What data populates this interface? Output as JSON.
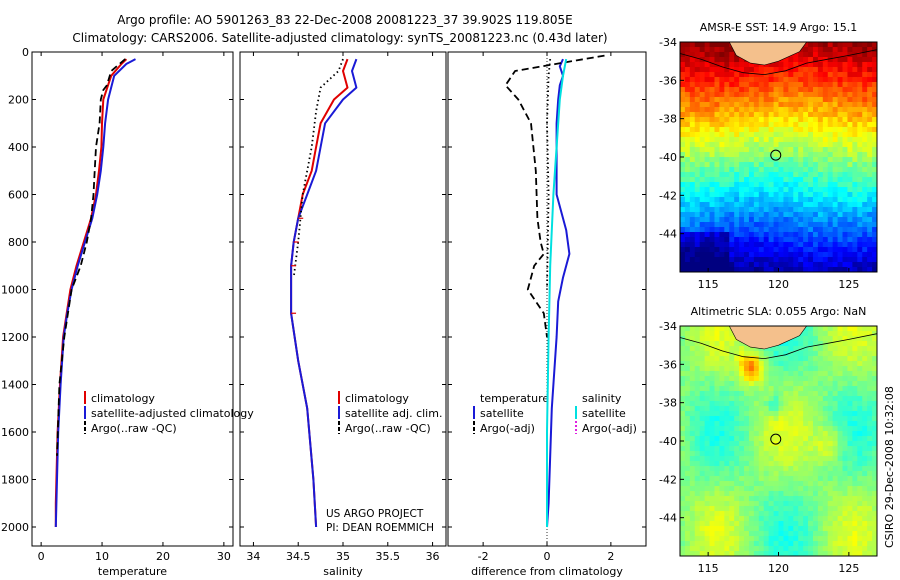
{
  "figure": {
    "title_line1": "Argo profile: AO 5901263_83 22-Dec-2008 20081223_37 39.902S 119.805E",
    "title_line2": "Climatology: CARS2006. Satellite-adjusted climatology: synTS_20081223.nc (0.43d later)",
    "credit": "CSIRO 29-Dec-2008 10:32:08",
    "project_line1": "US ARGO PROJECT",
    "project_line2": "PI: DEAN ROEMMICH"
  },
  "colors": {
    "climatology": "#e00000",
    "satellite": "#1a1ad6",
    "argo": "#000000",
    "satellite_salinity_diff": "#00e0e0",
    "argo_salinity_diff": "#e020e0",
    "land": "#f4c08c"
  },
  "legends": {
    "temperature": [
      "climatology",
      "satellite-adjusted climatology",
      "Argo(..raw -QC)"
    ],
    "salinity": [
      "climatology",
      "satellite adj. clim.",
      "Argo(..raw -QC)"
    ],
    "difference": {
      "temperature_header": "temperature",
      "salinity_header": "salinity",
      "temperature_items": [
        "satellite",
        "Argo(-adj)"
      ],
      "salinity_items": [
        "satellite",
        "Argo(-adj)"
      ]
    }
  },
  "chart_data": [
    {
      "type": "line",
      "xlabel": "temperature",
      "ylabel": "",
      "xlim": [
        -1.5,
        31.5
      ],
      "ylim": [
        2080,
        0
      ],
      "xticks": [
        0,
        10,
        20,
        30
      ],
      "yticks": [
        0,
        200,
        400,
        600,
        800,
        1000,
        1200,
        1400,
        1600,
        1800,
        2000
      ],
      "y_reversed": true,
      "series": [
        {
          "name": "climatology",
          "style": "solid",
          "x": [
            14.0,
            13.2,
            11.5,
            10.2,
            10.0,
            9.9,
            9.5,
            9.0,
            8.2,
            7.0,
            5.8,
            4.8,
            4.2,
            3.6,
            3.1,
            2.7,
            2.5,
            2.4,
            2.4
          ],
          "y": [
            30,
            50,
            100,
            200,
            300,
            400,
            500,
            600,
            700,
            800,
            900,
            1000,
            1100,
            1200,
            1400,
            1600,
            1800,
            1900,
            2000
          ]
        },
        {
          "name": "satellite-adjusted climatology",
          "style": "solid",
          "x": [
            15.5,
            14.0,
            12.0,
            11.0,
            10.5,
            10.2,
            9.8,
            9.2,
            8.4,
            7.2,
            6.0,
            5.0,
            4.3,
            3.7,
            3.2,
            2.8,
            2.6,
            2.5,
            2.4
          ],
          "y": [
            30,
            50,
            100,
            200,
            300,
            400,
            500,
            600,
            700,
            800,
            900,
            1000,
            1100,
            1200,
            1400,
            1600,
            1800,
            1900,
            2000
          ]
        },
        {
          "name": "Argo(..raw -QC)",
          "style": "dashed",
          "x": [
            13.8,
            11.5,
            10.8,
            10.2,
            9.8,
            9.6,
            9.0,
            8.8,
            8.6,
            8.2,
            7.5,
            6.5,
            5.0,
            3.8,
            3.0,
            2.6
          ],
          "y": [
            30,
            80,
            140,
            160,
            200,
            300,
            400,
            500,
            600,
            700,
            800,
            900,
            1000,
            1200,
            1400,
            1700
          ]
        }
      ]
    },
    {
      "type": "line",
      "xlabel": "salinity",
      "ylabel": "",
      "xlim": [
        33.85,
        36.15
      ],
      "ylim": [
        2080,
        0
      ],
      "xticks": [
        34,
        34.5,
        35,
        35.5,
        36
      ],
      "y_reversed": true,
      "series": [
        {
          "name": "climatology",
          "style": "solid",
          "x": [
            35.05,
            35.0,
            35.05,
            34.9,
            34.75,
            34.7,
            34.65,
            34.55,
            34.5,
            34.45,
            34.42,
            34.42,
            34.5,
            34.6,
            34.67,
            34.7
          ],
          "y": [
            30,
            80,
            150,
            200,
            300,
            400,
            500,
            600,
            700,
            800,
            900,
            1100,
            1300,
            1500,
            1800,
            2000
          ]
        },
        {
          "name": "satellite adj. clim.",
          "style": "solid",
          "x": [
            35.15,
            35.1,
            35.15,
            35.0,
            34.8,
            34.75,
            34.7,
            34.6,
            34.5,
            34.45,
            34.42,
            34.42,
            34.5,
            34.6,
            34.67,
            34.7
          ],
          "y": [
            30,
            80,
            150,
            200,
            300,
            400,
            500,
            600,
            700,
            800,
            900,
            1100,
            1300,
            1500,
            1800,
            2000
          ]
        },
        {
          "name": "Argo(..raw -QC)",
          "style": "dotted",
          "x": [
            35.0,
            34.95,
            34.75,
            34.7,
            34.65,
            34.55,
            34.5,
            34.45
          ],
          "y": [
            30,
            80,
            150,
            250,
            400,
            600,
            800,
            950
          ]
        }
      ]
    },
    {
      "type": "line",
      "xlabel": "difference from climatology",
      "ylabel": "",
      "xlim": [
        -3.1,
        3.1
      ],
      "ylim": [
        2080,
        0
      ],
      "xticks": [
        -2,
        0,
        2
      ],
      "y_reversed": true,
      "series": [
        {
          "name": "temperature satellite",
          "style": "solid",
          "x": [
            0.5,
            0.4,
            0.5,
            0.4,
            0.35,
            0.3,
            0.3,
            0.3,
            0.6,
            0.7,
            0.5,
            0.35,
            0.3,
            0.25,
            0.15,
            0.1,
            0.05,
            0.0
          ],
          "y": [
            30,
            60,
            100,
            140,
            200,
            300,
            400,
            600,
            750,
            850,
            950,
            1050,
            1200,
            1300,
            1500,
            1700,
            1900,
            2000
          ]
        },
        {
          "name": "temperature Argo(-adj)",
          "style": "dashed",
          "x": [
            1.8,
            0.5,
            -1.0,
            -1.3,
            -0.9,
            -0.5,
            -0.35,
            -0.3,
            -0.2,
            -0.1,
            -0.4,
            -0.6,
            -0.1,
            0.0
          ],
          "y": [
            15,
            45,
            80,
            140,
            200,
            300,
            500,
            700,
            800,
            850,
            900,
            1000,
            1100,
            1200
          ]
        },
        {
          "name": "salinity satellite",
          "style": "solid",
          "x": [
            0.6,
            0.5,
            0.4,
            0.3,
            0.2,
            0.1,
            0.05,
            0.0,
            0.0
          ],
          "y": [
            30,
            100,
            200,
            400,
            600,
            900,
            1200,
            1600,
            2000
          ]
        },
        {
          "name": "salinity Argo(-adj)",
          "style": "dotted",
          "x": [
            0.1,
            0.05,
            0.0,
            0.05,
            0.0
          ],
          "y": [
            30,
            100,
            300,
            600,
            1000
          ]
        }
      ]
    },
    {
      "type": "heatmap",
      "title": "AMSR-E SST: 14.9 Argo: 15.1",
      "xlim": [
        113,
        127
      ],
      "ylim": [
        -46,
        -34
      ],
      "xticks": [
        115,
        120,
        125
      ],
      "yticks": [
        -34,
        -36,
        -38,
        -40,
        -42,
        -44
      ],
      "profile_location": [
        119.805,
        -39.902
      ],
      "colormap": "jet",
      "value_label": "SST"
    },
    {
      "type": "heatmap",
      "title": "Altimetric SLA: 0.055 Argo: NaN",
      "xlim": [
        113,
        127
      ],
      "ylim": [
        -46,
        -34
      ],
      "xticks": [
        115,
        120,
        125
      ],
      "yticks": [
        -34,
        -36,
        -38,
        -40,
        -42,
        -44
      ],
      "profile_location": [
        119.805,
        -39.902
      ],
      "colormap": "jet",
      "value_label": "SLA"
    }
  ]
}
